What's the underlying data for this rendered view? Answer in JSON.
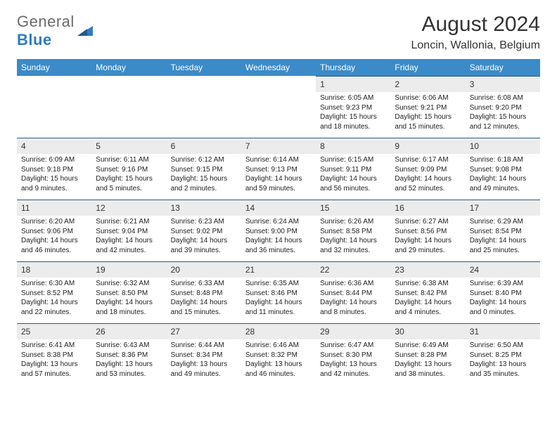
{
  "brand": {
    "part1": "General",
    "part2": "Blue"
  },
  "title": "August 2024",
  "location": "Loncin, Wallonia, Belgium",
  "colors": {
    "header_bg": "#3b8bc9",
    "daynum_bg": "#ececec",
    "row_border": "#2b5a82",
    "brand_gray": "#6b6b6b",
    "brand_blue": "#2f7bbf"
  },
  "day_labels": [
    "Sunday",
    "Monday",
    "Tuesday",
    "Wednesday",
    "Thursday",
    "Friday",
    "Saturday"
  ],
  "first_day_index": 4,
  "days": [
    {
      "n": "1",
      "sr": "6:05 AM",
      "ss": "9:23 PM",
      "dl": "15 hours and 18 minutes."
    },
    {
      "n": "2",
      "sr": "6:06 AM",
      "ss": "9:21 PM",
      "dl": "15 hours and 15 minutes."
    },
    {
      "n": "3",
      "sr": "6:08 AM",
      "ss": "9:20 PM",
      "dl": "15 hours and 12 minutes."
    },
    {
      "n": "4",
      "sr": "6:09 AM",
      "ss": "9:18 PM",
      "dl": "15 hours and 9 minutes."
    },
    {
      "n": "5",
      "sr": "6:11 AM",
      "ss": "9:16 PM",
      "dl": "15 hours and 5 minutes."
    },
    {
      "n": "6",
      "sr": "6:12 AM",
      "ss": "9:15 PM",
      "dl": "15 hours and 2 minutes."
    },
    {
      "n": "7",
      "sr": "6:14 AM",
      "ss": "9:13 PM",
      "dl": "14 hours and 59 minutes."
    },
    {
      "n": "8",
      "sr": "6:15 AM",
      "ss": "9:11 PM",
      "dl": "14 hours and 56 minutes."
    },
    {
      "n": "9",
      "sr": "6:17 AM",
      "ss": "9:09 PM",
      "dl": "14 hours and 52 minutes."
    },
    {
      "n": "10",
      "sr": "6:18 AM",
      "ss": "9:08 PM",
      "dl": "14 hours and 49 minutes."
    },
    {
      "n": "11",
      "sr": "6:20 AM",
      "ss": "9:06 PM",
      "dl": "14 hours and 46 minutes."
    },
    {
      "n": "12",
      "sr": "6:21 AM",
      "ss": "9:04 PM",
      "dl": "14 hours and 42 minutes."
    },
    {
      "n": "13",
      "sr": "6:23 AM",
      "ss": "9:02 PM",
      "dl": "14 hours and 39 minutes."
    },
    {
      "n": "14",
      "sr": "6:24 AM",
      "ss": "9:00 PM",
      "dl": "14 hours and 36 minutes."
    },
    {
      "n": "15",
      "sr": "6:26 AM",
      "ss": "8:58 PM",
      "dl": "14 hours and 32 minutes."
    },
    {
      "n": "16",
      "sr": "6:27 AM",
      "ss": "8:56 PM",
      "dl": "14 hours and 29 minutes."
    },
    {
      "n": "17",
      "sr": "6:29 AM",
      "ss": "8:54 PM",
      "dl": "14 hours and 25 minutes."
    },
    {
      "n": "18",
      "sr": "6:30 AM",
      "ss": "8:52 PM",
      "dl": "14 hours and 22 minutes."
    },
    {
      "n": "19",
      "sr": "6:32 AM",
      "ss": "8:50 PM",
      "dl": "14 hours and 18 minutes."
    },
    {
      "n": "20",
      "sr": "6:33 AM",
      "ss": "8:48 PM",
      "dl": "14 hours and 15 minutes."
    },
    {
      "n": "21",
      "sr": "6:35 AM",
      "ss": "8:46 PM",
      "dl": "14 hours and 11 minutes."
    },
    {
      "n": "22",
      "sr": "6:36 AM",
      "ss": "8:44 PM",
      "dl": "14 hours and 8 minutes."
    },
    {
      "n": "23",
      "sr": "6:38 AM",
      "ss": "8:42 PM",
      "dl": "14 hours and 4 minutes."
    },
    {
      "n": "24",
      "sr": "6:39 AM",
      "ss": "8:40 PM",
      "dl": "14 hours and 0 minutes."
    },
    {
      "n": "25",
      "sr": "6:41 AM",
      "ss": "8:38 PM",
      "dl": "13 hours and 57 minutes."
    },
    {
      "n": "26",
      "sr": "6:43 AM",
      "ss": "8:36 PM",
      "dl": "13 hours and 53 minutes."
    },
    {
      "n": "27",
      "sr": "6:44 AM",
      "ss": "8:34 PM",
      "dl": "13 hours and 49 minutes."
    },
    {
      "n": "28",
      "sr": "6:46 AM",
      "ss": "8:32 PM",
      "dl": "13 hours and 46 minutes."
    },
    {
      "n": "29",
      "sr": "6:47 AM",
      "ss": "8:30 PM",
      "dl": "13 hours and 42 minutes."
    },
    {
      "n": "30",
      "sr": "6:49 AM",
      "ss": "8:28 PM",
      "dl": "13 hours and 38 minutes."
    },
    {
      "n": "31",
      "sr": "6:50 AM",
      "ss": "8:25 PM",
      "dl": "13 hours and 35 minutes."
    }
  ],
  "labels": {
    "sunrise": "Sunrise:",
    "sunset": "Sunset:",
    "daylight": "Daylight:"
  }
}
